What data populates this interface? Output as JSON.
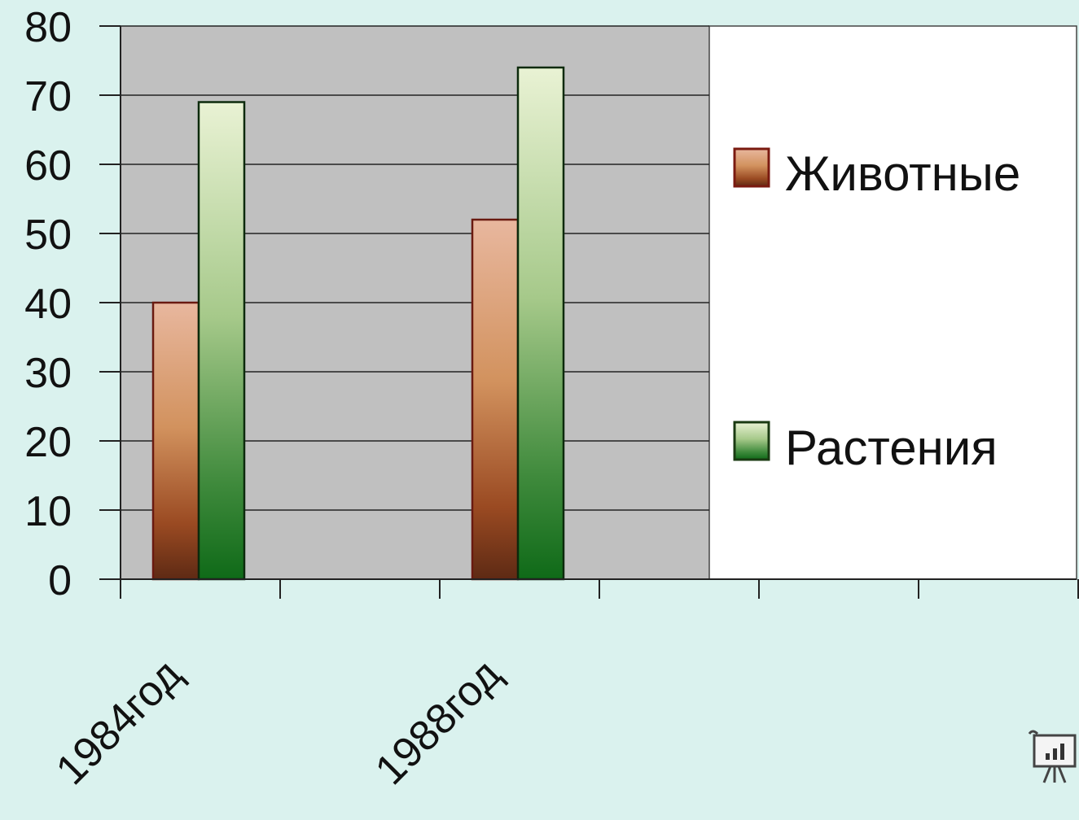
{
  "chart_data": {
    "type": "bar",
    "categories": [
      "1984год",
      "",
      "1988год",
      ""
    ],
    "series": [
      {
        "name": "Животные",
        "values": [
          40,
          null,
          52,
          null
        ],
        "color": "#b85a2a"
      },
      {
        "name": "Растения",
        "values": [
          69,
          null,
          74,
          null
        ],
        "color": "#3a8a34"
      }
    ],
    "ylim": [
      0,
      80
    ],
    "yticks": [
      0,
      10,
      20,
      30,
      40,
      50,
      60,
      70,
      80
    ],
    "grid": true,
    "legend": "right",
    "plot_background": "#c0c0c0",
    "legend_background": "#ffffff"
  },
  "icons": {
    "corner": "presentation-chart-icon"
  }
}
